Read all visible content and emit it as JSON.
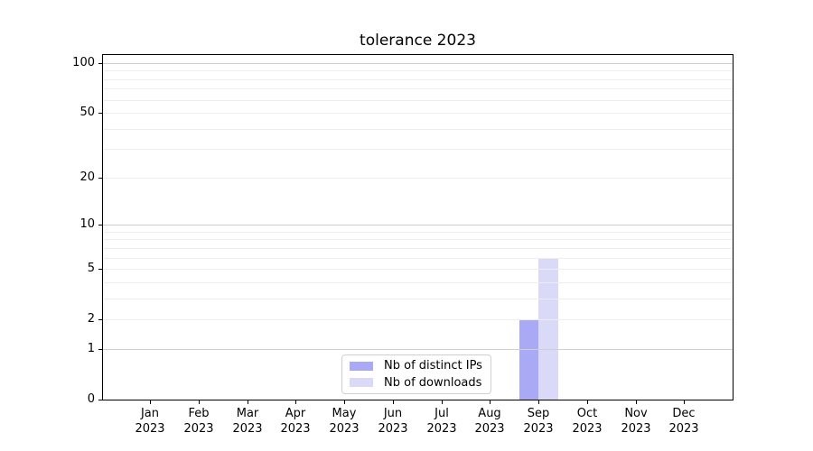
{
  "chart_data": {
    "type": "bar",
    "title": "tolerance 2023",
    "categories": [
      "Jan",
      "Feb",
      "Mar",
      "Apr",
      "May",
      "Jun",
      "Jul",
      "Aug",
      "Sep",
      "Oct",
      "Nov",
      "Dec"
    ],
    "category_year": "2023",
    "series": [
      {
        "name": "Nb of distinct IPs",
        "color": "#a9a9f6",
        "values": [
          0,
          0,
          0,
          0,
          0,
          0,
          0,
          0,
          2,
          0,
          0,
          0
        ]
      },
      {
        "name": "Nb of downloads",
        "color": "#dadaf8",
        "values": [
          0,
          0,
          0,
          0,
          0,
          0,
          0,
          0,
          6,
          0,
          0,
          0
        ]
      }
    ],
    "xlabel": "",
    "ylabel": "",
    "yscale": "log1p",
    "ylim": [
      0,
      113
    ],
    "yticks": [
      0,
      1,
      2,
      5,
      10,
      20,
      50,
      100
    ],
    "grid": {
      "minor_values": [
        2,
        3,
        4,
        5,
        6,
        7,
        8,
        9,
        20,
        30,
        40,
        50,
        60,
        70,
        80,
        90
      ],
      "major_values": [
        1,
        10,
        100
      ],
      "minor_color": "#ededed",
      "major_color": "#cfcfcf"
    },
    "legend": {
      "position": "lower center"
    },
    "colors": {
      "axis": "#000000",
      "text": "#000000",
      "background": "#ffffff"
    }
  }
}
